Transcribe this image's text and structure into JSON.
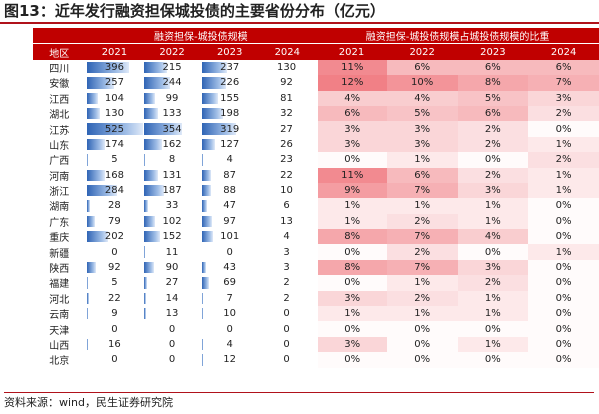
{
  "title": "图13：近年发行融资担保城投债的主要省份分布（亿元）",
  "source": "资料来源：wind，民生证券研究院",
  "chart_data": {
    "type": "table",
    "group_headers": [
      "融资担保-城投债规模",
      "融资担保-城投债规模占城投债规模的比重"
    ],
    "region_header": "地区",
    "years": [
      "2021",
      "2022",
      "2023",
      "2024"
    ],
    "rows": [
      {
        "region": "四川",
        "scale": [
          396,
          215,
          237,
          130
        ],
        "share": [
          "11%",
          "6%",
          "6%",
          "6%"
        ]
      },
      {
        "region": "安徽",
        "scale": [
          257,
          244,
          226,
          92
        ],
        "share": [
          "12%",
          "10%",
          "8%",
          "7%"
        ]
      },
      {
        "region": "江西",
        "scale": [
          104,
          99,
          155,
          81
        ],
        "share": [
          "4%",
          "4%",
          "5%",
          "3%"
        ]
      },
      {
        "region": "湖北",
        "scale": [
          130,
          133,
          198,
          32
        ],
        "share": [
          "6%",
          "5%",
          "6%",
          "2%"
        ]
      },
      {
        "region": "江苏",
        "scale": [
          525,
          354,
          319,
          27
        ],
        "share": [
          "3%",
          "3%",
          "2%",
          "0%"
        ]
      },
      {
        "region": "山东",
        "scale": [
          174,
          162,
          127,
          26
        ],
        "share": [
          "3%",
          "3%",
          "2%",
          "1%"
        ]
      },
      {
        "region": "广西",
        "scale": [
          5,
          8,
          4,
          23
        ],
        "share": [
          "0%",
          "1%",
          "0%",
          "2%"
        ]
      },
      {
        "region": "河南",
        "scale": [
          168,
          131,
          87,
          22
        ],
        "share": [
          "11%",
          "6%",
          "2%",
          "1%"
        ]
      },
      {
        "region": "浙江",
        "scale": [
          284,
          187,
          88,
          10
        ],
        "share": [
          "9%",
          "7%",
          "3%",
          "1%"
        ]
      },
      {
        "region": "湖南",
        "scale": [
          28,
          33,
          47,
          6
        ],
        "share": [
          "1%",
          "1%",
          "1%",
          "0%"
        ]
      },
      {
        "region": "广东",
        "scale": [
          79,
          102,
          97,
          13
        ],
        "share": [
          "1%",
          "2%",
          "1%",
          "0%"
        ]
      },
      {
        "region": "重庆",
        "scale": [
          202,
          152,
          101,
          4
        ],
        "share": [
          "8%",
          "7%",
          "4%",
          "0%"
        ]
      },
      {
        "region": "新疆",
        "scale": [
          0,
          11,
          0,
          3
        ],
        "share": [
          "0%",
          "2%",
          "0%",
          "1%"
        ]
      },
      {
        "region": "陕西",
        "scale": [
          92,
          90,
          43,
          3
        ],
        "share": [
          "8%",
          "7%",
          "3%",
          "0%"
        ]
      },
      {
        "region": "福建",
        "scale": [
          5,
          27,
          69,
          2
        ],
        "share": [
          "0%",
          "1%",
          "2%",
          "0%"
        ]
      },
      {
        "region": "河北",
        "scale": [
          22,
          14,
          7,
          2
        ],
        "share": [
          "3%",
          "2%",
          "1%",
          "0%"
        ]
      },
      {
        "region": "云南",
        "scale": [
          9,
          13,
          10,
          0
        ],
        "share": [
          "1%",
          "1%",
          "1%",
          "0%"
        ]
      },
      {
        "region": "天津",
        "scale": [
          0,
          0,
          0,
          0
        ],
        "share": [
          "0%",
          "0%",
          "0%",
          "0%"
        ]
      },
      {
        "region": "山西",
        "scale": [
          16,
          0,
          4,
          0
        ],
        "share": [
          "3%",
          "0%",
          "1%",
          "0%"
        ]
      },
      {
        "region": "北京",
        "scale": [
          0,
          0,
          12,
          0
        ],
        "share": [
          "0%",
          "0%",
          "0%",
          "0%"
        ]
      }
    ],
    "data_bars_on_scale_years": [
      "2021",
      "2022",
      "2023"
    ],
    "share_heat_color": "#e8303a"
  }
}
